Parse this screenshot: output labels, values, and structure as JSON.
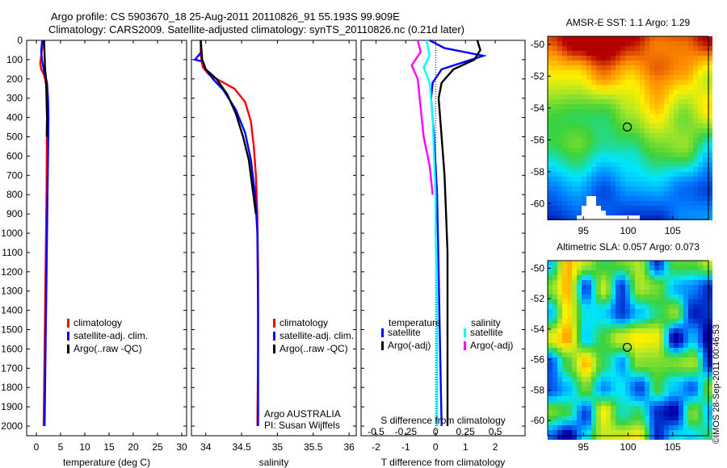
{
  "header": {
    "line1": "Argo profile: CS 5903670_18 25-Aug-2011 20110826_91 55.193S 99.909E",
    "line2": "Climatology: CARS2009. Satellite-adjusted climatology: synTS_20110826.nc (0.21d later)"
  },
  "footer_credit": "©IMOS 28-Sep-2011 00:46:53",
  "colors": {
    "climatology": "#ff0000",
    "satellite": "#0000ff",
    "argo": "#000000",
    "sal_sat": "#00ffff",
    "sal_argo": "#ff00ff"
  },
  "chart_data": [
    {
      "id": "temperature",
      "type": "line",
      "xlabel": "temperature (deg C)",
      "ylabel": "",
      "xlim": [
        -2,
        31
      ],
      "ylim": [
        2050,
        0
      ],
      "xticks": [
        0,
        5,
        10,
        15,
        20,
        25,
        30
      ],
      "yticks": [
        0,
        100,
        200,
        300,
        400,
        500,
        600,
        700,
        800,
        900,
        1000,
        1100,
        1200,
        1300,
        1400,
        1500,
        1600,
        1700,
        1800,
        1900,
        2000
      ],
      "legend": {
        "position": "lower-right",
        "entries": [
          "climatology",
          "satellite-adj. clim.",
          "Argo(..raw -QC)"
        ]
      },
      "series": [
        {
          "name": "climatology",
          "color": "#ff0000",
          "points": [
            [
              1.4,
              0
            ],
            [
              1.1,
              60
            ],
            [
              0.8,
              120
            ],
            [
              1.0,
              150
            ],
            [
              1.6,
              180
            ],
            [
              2.1,
              240
            ],
            [
              2.2,
              400
            ],
            [
              2.15,
              600
            ],
            [
              2.1,
              800
            ],
            [
              2.0,
              1000
            ],
            [
              1.9,
              1200
            ],
            [
              1.8,
              1400
            ],
            [
              1.7,
              1600
            ],
            [
              1.6,
              1800
            ],
            [
              1.5,
              2000
            ]
          ]
        },
        {
          "name": "satellite-adj. clim.",
          "color": "#0000ff",
          "points": [
            [
              1.2,
              0
            ],
            [
              1.0,
              60
            ],
            [
              1.2,
              110
            ],
            [
              1.6,
              160
            ],
            [
              2.2,
              220
            ],
            [
              2.4,
              300
            ],
            [
              2.5,
              400
            ],
            [
              2.4,
              600
            ],
            [
              2.3,
              800
            ],
            [
              2.2,
              1000
            ],
            [
              2.1,
              1200
            ],
            [
              2.0,
              1400
            ],
            [
              1.9,
              1600
            ],
            [
              1.8,
              1800
            ],
            [
              1.7,
              2000
            ]
          ]
        },
        {
          "name": "Argo(..raw -QC)",
          "color": "#000000",
          "points": [
            [
              1.6,
              0
            ],
            [
              1.7,
              80
            ],
            [
              1.8,
              150
            ],
            [
              2.0,
              200
            ],
            [
              2.1,
              300
            ],
            [
              2.2,
              400
            ],
            [
              2.15,
              500
            ]
          ]
        }
      ]
    },
    {
      "id": "salinity",
      "type": "line",
      "xlabel": "salinity",
      "ylabel": "",
      "xlim": [
        33.8,
        36.1
      ],
      "ylim": [
        2050,
        0
      ],
      "xticks": [
        34,
        34.5,
        35,
        35.5,
        36
      ],
      "legend": {
        "position": "lower-right",
        "entries": [
          "climatology",
          "satellite-adj. clim.",
          "Argo(..raw -QC)"
        ]
      },
      "annotation": [
        "Argo AUSTRALIA",
        "PI: Susan Wijffels"
      ],
      "series": [
        {
          "name": "climatology",
          "color": "#ff0000",
          "points": [
            [
              33.93,
              0
            ],
            [
              33.93,
              80
            ],
            [
              33.96,
              140
            ],
            [
              34.05,
              180
            ],
            [
              34.2,
              210
            ],
            [
              34.4,
              250
            ],
            [
              34.55,
              320
            ],
            [
              34.63,
              420
            ],
            [
              34.67,
              550
            ],
            [
              34.7,
              700
            ],
            [
              34.72,
              900
            ],
            [
              34.73,
              1200
            ],
            [
              34.73,
              1600
            ],
            [
              34.72,
              2000
            ]
          ]
        },
        {
          "name": "satellite-adj. clim.",
          "color": "#0000ff",
          "points": [
            [
              33.93,
              0
            ],
            [
              33.94,
              60
            ],
            [
              33.85,
              100
            ],
            [
              33.96,
              110
            ],
            [
              34.0,
              150
            ],
            [
              34.1,
              200
            ],
            [
              34.25,
              260
            ],
            [
              34.42,
              360
            ],
            [
              34.55,
              480
            ],
            [
              34.63,
              620
            ],
            [
              34.69,
              800
            ],
            [
              34.72,
              1000
            ],
            [
              34.73,
              1400
            ],
            [
              34.73,
              1800
            ],
            [
              34.73,
              2000
            ]
          ]
        },
        {
          "name": "Argo(..raw -QC)",
          "color": "#000000",
          "points": [
            [
              33.93,
              0
            ],
            [
              33.95,
              100
            ],
            [
              34.0,
              150
            ],
            [
              34.15,
              200
            ],
            [
              34.3,
              280
            ],
            [
              34.42,
              380
            ],
            [
              34.52,
              500
            ],
            [
              34.6,
              620
            ],
            [
              34.65,
              760
            ],
            [
              34.7,
              900
            ]
          ]
        }
      ]
    },
    {
      "id": "difference",
      "type": "line",
      "xlabel": "T difference from climatology",
      "xlabel_top": "S difference from climatology",
      "xlim": [
        -2.5,
        3
      ],
      "ylim": [
        2050,
        0
      ],
      "xticks": [
        -2,
        -1,
        0,
        1,
        2
      ],
      "top_ticks": [
        "-0.5",
        "-0.25",
        "0",
        "0.25",
        "0.5"
      ],
      "top_ticks_at": [
        -2,
        -1,
        0,
        1,
        2
      ],
      "legend_groups": [
        {
          "title": "temperature",
          "entries": [
            "satellite",
            "Argo(-adj)"
          ]
        },
        {
          "title": "salinity",
          "entries": [
            "satellite",
            "Argo(-adj)"
          ]
        }
      ],
      "series": [
        {
          "name": "temperature satellite",
          "color": "#0000ff",
          "points": [
            [
              -0.2,
              0
            ],
            [
              0.3,
              40
            ],
            [
              1.6,
              80
            ],
            [
              0.8,
              120
            ],
            [
              0.2,
              150
            ],
            [
              -0.1,
              220
            ],
            [
              -0.15,
              300
            ],
            [
              -0.05,
              500
            ],
            [
              0.05,
              800
            ],
            [
              0.1,
              1200
            ],
            [
              0.15,
              1600
            ],
            [
              0.2,
              2000
            ]
          ]
        },
        {
          "name": "temperature Argo(-adj)",
          "color": "#000000",
          "points": [
            [
              1.4,
              0
            ],
            [
              1.5,
              50
            ],
            [
              1.3,
              100
            ],
            [
              0.6,
              150
            ],
            [
              0.2,
              220
            ],
            [
              0.1,
              300
            ],
            [
              0.2,
              500
            ],
            [
              0.3,
              700
            ],
            [
              0.35,
              900
            ],
            [
              0.4,
              1100
            ],
            [
              0.4,
              1500
            ],
            [
              0.4,
              2000
            ]
          ]
        },
        {
          "name": "salinity satellite",
          "color": "#00ffff",
          "points": [
            [
              -0.3,
              0
            ],
            [
              -0.2,
              80
            ],
            [
              -0.4,
              140
            ],
            [
              -0.2,
              220
            ],
            [
              -0.1,
              400
            ],
            [
              -0.05,
              600
            ],
            [
              0.0,
              800
            ],
            [
              0.0,
              1000
            ],
            [
              0.05,
              1400
            ],
            [
              0.05,
              2000
            ]
          ]
        },
        {
          "name": "salinity Argo(-adj)",
          "color": "#ff00ff",
          "points": [
            [
              -0.6,
              0
            ],
            [
              -0.5,
              60
            ],
            [
              -0.8,
              130
            ],
            [
              -0.6,
              200
            ],
            [
              -0.5,
              350
            ],
            [
              -0.4,
              500
            ],
            [
              -0.2,
              650
            ],
            [
              -0.1,
              800
            ]
          ]
        }
      ]
    },
    {
      "id": "sst_map",
      "type": "heatmap",
      "title": "AMSR-E SST: 1.1 Argo: 1.29",
      "xlim": [
        91,
        109
      ],
      "ylim": [
        -61,
        -49.5
      ],
      "xticks": [
        95,
        100,
        105
      ],
      "yticks": [
        -50,
        -52,
        -54,
        -56,
        -58,
        -60
      ],
      "marker": {
        "lon": 99.909,
        "lat": -55.193
      }
    },
    {
      "id": "sla_map",
      "type": "heatmap",
      "title": "Altimetric SLA: 0.057 Argo: 0.073",
      "xlim": [
        91,
        109
      ],
      "ylim": [
        -61,
        -49.5
      ],
      "xticks": [
        95,
        100,
        105
      ],
      "yticks": [
        -50,
        -52,
        -54,
        -56,
        -58,
        -60
      ],
      "marker": {
        "lon": 99.909,
        "lat": -55.193
      }
    }
  ]
}
